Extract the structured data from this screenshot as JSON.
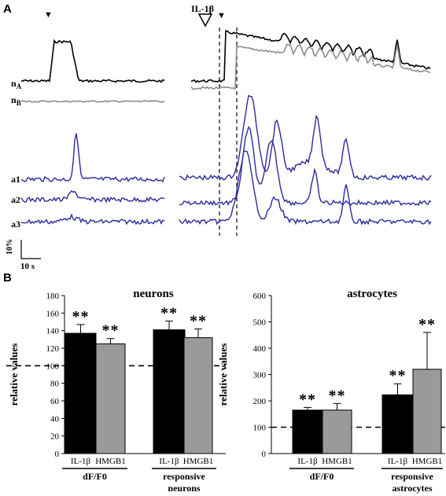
{
  "panel_a": {
    "letter": "A",
    "stimulus_label": "IL-1β",
    "trace_labels": [
      "n",
      "A",
      "n",
      "B",
      "a1",
      "a2",
      "a3"
    ],
    "scale_y": "10%",
    "scale_x": "10 s",
    "colors": {
      "neuron_a": "#000000",
      "neuron_b": "#8c8c8c",
      "astro": "#2b2a9c"
    }
  },
  "panel_b": {
    "letter": "B"
  },
  "chart_data": [
    {
      "type": "bar",
      "title": "neurons",
      "ylabel": "relative values",
      "ylim": [
        0,
        180
      ],
      "yticks": [
        0,
        20,
        40,
        60,
        80,
        100,
        120,
        140,
        160,
        180
      ],
      "baseline": 100,
      "groups": [
        {
          "label": "dF/F0",
          "categories": [
            "IL-1β",
            "HMGB1"
          ],
          "values": [
            137,
            125
          ],
          "errors": [
            10,
            6
          ],
          "stars": [
            "**",
            "**"
          ]
        },
        {
          "label_lines": [
            "responsive",
            "neurons"
          ],
          "categories": [
            "IL-1β",
            "HMGB1"
          ],
          "values": [
            141,
            132
          ],
          "errors": [
            10,
            10
          ],
          "stars": [
            "**",
            "**"
          ]
        }
      ],
      "colors": [
        "#000000",
        "#9a9a9a"
      ]
    },
    {
      "type": "bar",
      "title": "astrocytes",
      "ylabel": "relative values",
      "ylim": [
        0,
        600
      ],
      "yticks": [
        0,
        100,
        200,
        300,
        400,
        500,
        600
      ],
      "baseline": 100,
      "groups": [
        {
          "label": "dF/F0",
          "categories": [
            "IL-1β",
            "HMGB1"
          ],
          "values": [
            165,
            165
          ],
          "errors": [
            10,
            25
          ],
          "stars": [
            "**",
            "**"
          ]
        },
        {
          "label_lines": [
            "responsive",
            "astrocytes"
          ],
          "categories": [
            "IL-1β",
            "HMGB1"
          ],
          "values": [
            223,
            320
          ],
          "errors": [
            42,
            140
          ],
          "stars": [
            "**",
            "**"
          ]
        }
      ],
      "colors": [
        "#000000",
        "#9a9a9a"
      ]
    }
  ]
}
